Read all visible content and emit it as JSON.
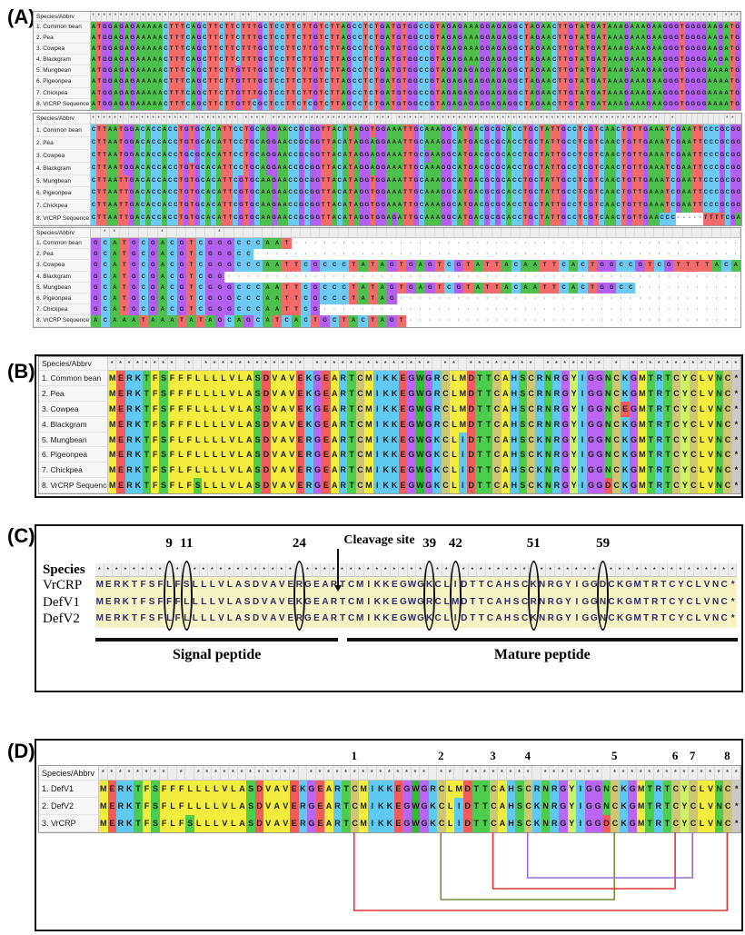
{
  "consensus_symbol": "*",
  "colors": {
    "dna": {
      "A": "#4dbf4d",
      "T": "#f26b6b",
      "G": "#b35ff0",
      "C": "#6bc9f2"
    },
    "protein": {
      "A": "#f2ec3f",
      "C": "#cdc673",
      "D": "#f25c5c",
      "E": "#f25c5c",
      "F": "#f2ec3f",
      "G": "#ba66f2",
      "H": "#5fc9f2",
      "I": "#5fc9f2",
      "K": "#5fc9f2",
      "L": "#f2ec3f",
      "M": "#f2ec3f",
      "N": "#4dcc4d",
      "R": "#5fc9f2",
      "S": "#4dcc4d",
      "T": "#4dcc4d",
      "V": "#f2ec3f",
      "W": "#33bb33",
      "Y": "#ccf266",
      "*": "#c9c9c9"
    },
    "bridge_red": "#e03434",
    "bridge_green": "#6f8f3b",
    "bridge_purple": "#9a6fd0",
    "panelC_bg": "#f5f2c4",
    "panelC_text": "#2b2b66"
  },
  "panelA": {
    "label": "(A)",
    "header": "Species/Abbrv",
    "species": [
      "1. Common bean",
      "2. Pea",
      "3. Cowpea",
      "4. Blackgram",
      "5. Mungbean",
      "6. Pigeonpea",
      "7. Chickpea",
      "8. VrCRP Sequence"
    ],
    "blocks": [
      {
        "cols": 117,
        "sequences": [
          "ATGGAGAGAAAAACTTTCAGCTTCTTCTTTGCTCCTTCTTGTCTTAGCCTCTGATGTGGCCGTAGAGAAAGGAGAGGCTAGAACTTGTATGATAAAGAAAGAAGGGTGGGGAAGATG",
          "ATGGAGAGAAAAACTTTCAGCTTCTTCTTTGCTCCTTCTTGTCTTAGCCTCTGATGTGGCCGTAGAGAAAGGAGAGGCTAGAACTTGTATGATAAAGAAAGAAGGGTGGGGAAGATG",
          "ATGGAGAGAAAAACTTTCAGCTTCTTCTTTGCTCCTTCTTGTCTTAGCCTCTGATGTGGCCGTAGAGAAAGGAGAGGCTAGAACTTGTATGATAAAGAAAGAAGGGTGGGGAAGATG",
          "ATGGAGAGAAAAACTTTCAGCTTCTTCTTTGCTCCTTCTTGTCTTAGCCTCTGATGTGGCCGTAGAGAAAGGAGAGGCTAGAACTTGTATGATAAAGAAAGAAGGGTGGGGAAGATG",
          "ATGGAGAGAAAAACTTTCAGCTTCTTGTTTGCTCCTTCTTGTCTTAGCCTCTGATGTGGCCGTAGAGAGAGGAGAGGCTAGAACTTGTATGATAAAGAAAGAAGGGTGGGGAAAATG",
          "ATGGAGAGAAAAACTTTCAGCTTCTTGTTTGCTCCTTCTTGTCTTAGCCTCTGATGTGGCCGTAGAGAGAGGAGAGGCTAGAACTTGTATGATAAAGAAAGAAGGGTGGGGAAAATG",
          "ATGGAGAGAAAAACTTTCAGCTTCTTGTTTGCTCCTTCTTGTCTTAGCCTCTGATGTGGCCGTAGAGAGAGGAGAGGCTAGAACTTGTATGATAAAGAAAGAAGGGTGGGGAAAATG",
          "ATGGAGAGAAAAACTTTCAGCTTCTTGTTCGCTCCTTCTCGTCTTAGCCTCTGATGTGGCCGTAGAGAGAGGAGAGGCTAGAACTTGTATGATAAAGAAAGAAGGGTGGGGAAAATG"
        ]
      },
      {
        "cols": 119,
        "sequences": [
          "CTTAATGGACACCACCTGTGCACATTCCTGCAGGAACCGCGGTTACATAGGTGGAAATTGCAAAGGCATGACGCGCACCTGCTATTGCCTCGTCAACTGTTGAAATCGAATTCCCGCGG",
          "CTTAATGGACACCACCTGTGCACATTCCTGCAGGAACCGCGGTTACATAGGAGGAAATTGCAAAGGCATGACGCGCACCTGCTATTGCCTCGTCAACTGTTGAAATCGAATTCCCGCGG",
          "CTTAATGGACACCACCTGCGCACATTCCTGCAGGAACCGCGGTTACATAGGAGGAAATTGCGAAGGCATGACGCGCACCTGCTATTGCCTCGTCAACTGTTGAAATCGAATTCCCGCGG",
          "CTTAATGGACACCACCTGTGCACATTCCTGCAGGAACCGCGGTTACATAGGAGGAAATTGCAAAGGCATGACGCGCACCTGCTATTGCCTCGTCAACTGTTGAAATCGAATTCCCGCGG",
          "CTTAATTGACACCACCTGTGCACATTCGTGCAAGAACCGCGGTTACATAGGTGGAAATTGCAAAGGCATGACGCGCACCTGCTATTGCCTCGTCAACTGTTGAAATCGAATTCCCGCGG",
          "CTTAATTGACACCACCTGTGCACATTCGTGCAAGAACCGCGGTTACATAGGTGGAAATTGCAAAGGCATGACGCGCACCTGCTATTGCCTCGTCAACTGTTGAAATCGAATTCCCGCGG",
          "CTTAATTGACACCACCTGTGCACATTCGTGCAAGAACCGCGGTTACATAGGTGGAAATTGCAAAGGCATGACGCGCACCTGCTATTGCCTCGTCAACTGTTGAAATCGAATTCCCGCGG",
          "CTTAATTGACACCACCTGTGCACATTCGTGCAAGAACCGCGGTTACATAGGTGGAGATTGCAAAGGCATGACGCGCACCTGCTATTGCCTCGTCAACTGTTGAACCC-----TTTTCGA"
        ]
      },
      {
        "cols": 68,
        "sequences": [
          "GCATGCGACGTCGGGCCCAAT",
          "GCATGCGACGTCGGGCC",
          "GCATGCGACGTCGGGCCCAATTCGCCCTATAGTGAGTCGTATTACAATTCACTGGCCGTCGTTTTACA",
          "GCATGCGACGTCGG",
          "GCATGCGACGTCGGGCCCAATTCGCCCTATAGTGAGTCGTATTACAATTCACTGGCC",
          "GCATGCGACGTCGGGCCCAATTCGCCCTATAG",
          "GCATGCGACGTCGGGCCCAATTCG",
          "ACAAATAAATATAGCAGCATCACTGCTACTAGT"
        ]
      }
    ]
  },
  "panelB": {
    "label": "(B)",
    "header": "Species/Abbrv",
    "species": [
      "1. Common bean",
      "2. Pea",
      "3. Cowpea",
      "4. Blackgram",
      "5. Mungbean",
      "6. Pigeonpea",
      "7. Chickpea",
      "8. VrCRP Sequence"
    ],
    "sequences": [
      "MERKTFSFFFLLLLVLASDVAVEKGEARTCMIKKEGWGRCLMDTTCAHSCRNRGYIGGNCKGMTRTCYCLVNC*",
      "MERKTFSFFFLLLLVLASDVAVEKGEARTCMIKKEGWGRCLMDTTCAHSCRNRGYIGGNCKGMTRTCYCLVNC*",
      "MERKTFSFFFLLLLVLASDVAVEKGEARTCMIKKEGWGRCLMDTTCAHSCRNRGYIGGNCEGMTRTCYCLVNC*",
      "MERKTFSFFFLLLLVLASDVAVEKGEARTCMIKKEGWGRCLMDTTCAHSCRNRGYIGGNCKGMTRTCYCLVNC*",
      "MERKTFSFLFLLLLVLASDVAVERGEARTCMIKKEGWGKCLIDTTCAHSCKNRGYIGGNCKGMTRTCYCLVNC*",
      "MERKTFSFLFLLLLVLASDVAVERGEARTCMIKKEGWGKCLIDTTCAHSCKNRGYIGGNCKGMTRTCYCLVNC*",
      "MERKTFSFLFLLLLVLASDVAVERGEARTCMIKKEGWGKCLIDTTCAHSCKNRGYIGGNCKGMTRTCYCLVNC*",
      "MERKTFSFLFSLLLVLASDVAVERGEARTCMIKKEGWGKCLIDTTCAHSCKNRGYIGGDCKGMTRTCYCLVNC*"
    ]
  },
  "panelC": {
    "label": "(C)",
    "header": "Species",
    "rows": [
      {
        "name": "VrCRP",
        "seq": "MERKTFSFLFSLLLVLASDVAVERGEARTCMIKKEGWGKCLIDTTCAHSCKNRGYIGGDCKGMTRTCYCLVNC*"
      },
      {
        "name": "DefV1",
        "seq": "MERKTFSFFFLLLLVLASDVAVEKGEARTCMIKKEGWGRCLMDTTCAHSCRNRGYIGGNCKGMTRTCYCLVNC*"
      },
      {
        "name": "DefV2",
        "seq": "MERKTFSFLFLLLLVLASDVAVERGEARTCMIKKEGWGKCLIDTTCAHSCKNRGYIGGNCKGMTRTCYCLVNC*"
      }
    ],
    "position_numbers": [
      {
        "n": "9",
        "col": 9
      },
      {
        "n": "11",
        "col": 11
      },
      {
        "n": "24",
        "col": 24
      },
      {
        "n": "39",
        "col": 39
      },
      {
        "n": "42",
        "col": 42
      },
      {
        "n": "51",
        "col": 51
      },
      {
        "n": "59",
        "col": 59
      }
    ],
    "circled_columns": [
      9,
      11,
      24,
      39,
      42,
      51,
      59
    ],
    "cleavage": {
      "label": "Cleavage site",
      "after_column": 28
    },
    "regions": [
      {
        "label": "Signal peptide",
        "from": 1,
        "to": 28
      },
      {
        "label": "Mature peptide",
        "from": 30,
        "to": 74
      }
    ]
  },
  "panelD": {
    "label": "(D)",
    "header": "Species/Abbrv",
    "rows": [
      {
        "name": "1. DefV1",
        "seq": "MERKTFSFFFLLLLVLASDVAVEKGEARTCMIKKEGWGRCLMDTTCAHSCRNRGYIGGNCKGMTRTCYCLVNC*"
      },
      {
        "name": "2. DefV2",
        "seq": "MERKTFSFLFLLLLVLASDVAVERGEARTCMIKKEGWGKCLIDTTCAHSCKNRGYIGGNCKGMTRTCYCLVNC*"
      },
      {
        "name": "3. VrCRP",
        "seq": "MERKTFSFLFSLLLVLASDVAVERGEARTCMIKKEGWGKCLIDTTCAHSCKNRGYIGGDCKGMTRTCYCLVNC*"
      }
    ],
    "cysteine_numbers": [
      {
        "n": "1",
        "col": 30
      },
      {
        "n": "2",
        "col": 40
      },
      {
        "n": "3",
        "col": 46
      },
      {
        "n": "4",
        "col": 50
      },
      {
        "n": "5",
        "col": 60
      },
      {
        "n": "6",
        "col": 67
      },
      {
        "n": "7",
        "col": 69
      },
      {
        "n": "8",
        "col": 73
      }
    ],
    "bridges": [
      {
        "from": 1,
        "to": 8,
        "color": "red",
        "level": 4
      },
      {
        "from": 2,
        "to": 5,
        "color": "green",
        "level": 3
      },
      {
        "from": 3,
        "to": 6,
        "color": "red",
        "level": 2
      },
      {
        "from": 4,
        "to": 7,
        "color": "purple",
        "level": 1
      }
    ]
  }
}
